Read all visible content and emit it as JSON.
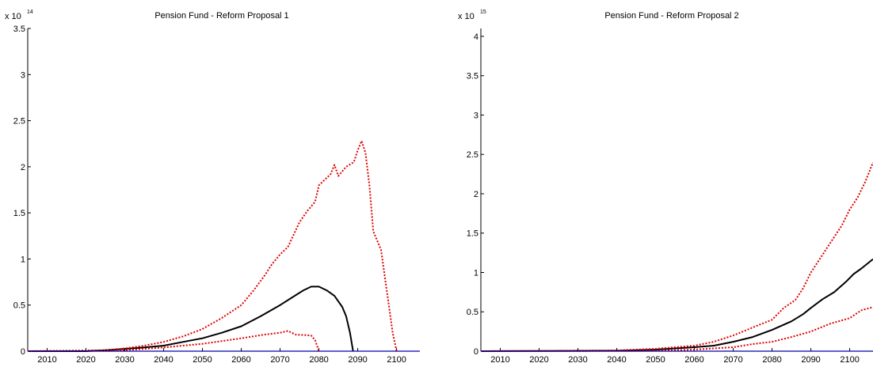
{
  "chart_data": [
    {
      "type": "line",
      "title": "Pension Fund - Reform Proposal 1",
      "xlabel": "",
      "ylabel": "",
      "y_multiplier": {
        "base": "x 10",
        "exponent": "14"
      },
      "xlim": [
        2005,
        2106
      ],
      "ylim": [
        0,
        3.5
      ],
      "xticks": [
        2010,
        2020,
        2030,
        2040,
        2050,
        2060,
        2070,
        2080,
        2090,
        2100
      ],
      "yticks": [
        0,
        0.5,
        1,
        1.5,
        2,
        2.5,
        3,
        3.5
      ],
      "ytick_labels": [
        "0",
        "0.5",
        "1",
        "1.5",
        "2",
        "2.5",
        "3",
        "3.5"
      ],
      "grid": false,
      "series": [
        {
          "color": "#000000",
          "style": "solid",
          "points": [
            [
              2005,
              0
            ],
            [
              2020,
              0
            ],
            [
              2025,
              0.01
            ],
            [
              2030,
              0.025
            ],
            [
              2035,
              0.04
            ],
            [
              2040,
              0.06
            ],
            [
              2045,
              0.1
            ],
            [
              2050,
              0.14
            ],
            [
              2055,
              0.2
            ],
            [
              2060,
              0.27
            ],
            [
              2065,
              0.38
            ],
            [
              2070,
              0.5
            ],
            [
              2073,
              0.58
            ],
            [
              2076,
              0.66
            ],
            [
              2078,
              0.7
            ],
            [
              2080,
              0.7
            ],
            [
              2082,
              0.66
            ],
            [
              2084,
              0.6
            ],
            [
              2086,
              0.48
            ],
            [
              2087,
              0.38
            ],
            [
              2088,
              0.2
            ],
            [
              2088.8,
              0
            ]
          ]
        },
        {
          "color": "#e00000",
          "style": "dotted",
          "points": [
            [
              2005,
              0
            ],
            [
              2025,
              0.01
            ],
            [
              2030,
              0.03
            ],
            [
              2035,
              0.06
            ],
            [
              2040,
              0.1
            ],
            [
              2045,
              0.16
            ],
            [
              2050,
              0.24
            ],
            [
              2055,
              0.36
            ],
            [
              2060,
              0.5
            ],
            [
              2063,
              0.65
            ],
            [
              2066,
              0.82
            ],
            [
              2068,
              0.95
            ],
            [
              2070,
              1.05
            ],
            [
              2072,
              1.13
            ],
            [
              2075,
              1.4
            ],
            [
              2077,
              1.52
            ],
            [
              2079,
              1.62
            ],
            [
              2080,
              1.8
            ],
            [
              2083,
              1.92
            ],
            [
              2084,
              2.02
            ],
            [
              2085,
              1.9
            ],
            [
              2087,
              2.0
            ],
            [
              2089,
              2.05
            ],
            [
              2090,
              2.18
            ],
            [
              2091,
              2.28
            ],
            [
              2092,
              2.15
            ],
            [
              2093,
              1.8
            ],
            [
              2094,
              1.3
            ],
            [
              2095,
              1.2
            ],
            [
              2096,
              1.1
            ],
            [
              2097,
              0.8
            ],
            [
              2098,
              0.5
            ],
            [
              2099,
              0.2
            ],
            [
              2100,
              0
            ]
          ]
        },
        {
          "color": "#e00000",
          "style": "dotted",
          "points": [
            [
              2005,
              0
            ],
            [
              2030,
              0.01
            ],
            [
              2040,
              0.04
            ],
            [
              2050,
              0.08
            ],
            [
              2060,
              0.14
            ],
            [
              2066,
              0.18
            ],
            [
              2070,
              0.2
            ],
            [
              2072,
              0.22
            ],
            [
              2074,
              0.18
            ],
            [
              2078,
              0.17
            ],
            [
              2079,
              0.12
            ],
            [
              2080,
              0
            ]
          ]
        },
        {
          "color": "#0000aa",
          "style": "solid",
          "points": [
            [
              2005,
              0
            ],
            [
              2106,
              0
            ]
          ]
        }
      ]
    },
    {
      "type": "line",
      "title": "Pension Fund - Reform Proposal 2",
      "xlabel": "",
      "ylabel": "",
      "y_multiplier": {
        "base": "x 10",
        "exponent": "15"
      },
      "xlim": [
        2005,
        2106
      ],
      "ylim": [
        0,
        4.1
      ],
      "xticks": [
        2010,
        2020,
        2030,
        2040,
        2050,
        2060,
        2070,
        2080,
        2090,
        2100
      ],
      "yticks": [
        0,
        0.5,
        1,
        1.5,
        2,
        2.5,
        3,
        3.5,
        4
      ],
      "ytick_labels": [
        "0",
        "0.5",
        "1",
        "1.5",
        "2",
        "2.5",
        "3",
        "3.5",
        "4"
      ],
      "grid": false,
      "series": [
        {
          "color": "#000000",
          "style": "solid",
          "points": [
            [
              2005,
              0
            ],
            [
              2040,
              0.005
            ],
            [
              2050,
              0.02
            ],
            [
              2060,
              0.05
            ],
            [
              2065,
              0.07
            ],
            [
              2070,
              0.12
            ],
            [
              2075,
              0.18
            ],
            [
              2080,
              0.27
            ],
            [
              2085,
              0.38
            ],
            [
              2088,
              0.47
            ],
            [
              2090,
              0.55
            ],
            [
              2093,
              0.66
            ],
            [
              2096,
              0.75
            ],
            [
              2099,
              0.88
            ],
            [
              2101,
              0.98
            ],
            [
              2103,
              1.05
            ],
            [
              2106,
              1.17
            ]
          ]
        },
        {
          "color": "#e00000",
          "style": "dotted",
          "points": [
            [
              2005,
              0
            ],
            [
              2040,
              0.01
            ],
            [
              2050,
              0.03
            ],
            [
              2060,
              0.07
            ],
            [
              2065,
              0.12
            ],
            [
              2070,
              0.2
            ],
            [
              2075,
              0.3
            ],
            [
              2080,
              0.4
            ],
            [
              2083,
              0.55
            ],
            [
              2086,
              0.65
            ],
            [
              2088,
              0.8
            ],
            [
              2090,
              1.0
            ],
            [
              2092,
              1.15
            ],
            [
              2094,
              1.3
            ],
            [
              2096,
              1.45
            ],
            [
              2098,
              1.6
            ],
            [
              2100,
              1.8
            ],
            [
              2102,
              1.95
            ],
            [
              2104,
              2.15
            ],
            [
              2106,
              2.4
            ]
          ]
        },
        {
          "color": "#e00000",
          "style": "dotted",
          "points": [
            [
              2005,
              0
            ],
            [
              2050,
              0.005
            ],
            [
              2060,
              0.02
            ],
            [
              2070,
              0.05
            ],
            [
              2075,
              0.09
            ],
            [
              2080,
              0.12
            ],
            [
              2085,
              0.18
            ],
            [
              2090,
              0.25
            ],
            [
              2095,
              0.35
            ],
            [
              2100,
              0.42
            ],
            [
              2103,
              0.52
            ],
            [
              2106,
              0.56
            ]
          ]
        },
        {
          "color": "#0000aa",
          "style": "solid",
          "points": [
            [
              2005,
              0
            ],
            [
              2106,
              0
            ]
          ]
        }
      ]
    }
  ]
}
